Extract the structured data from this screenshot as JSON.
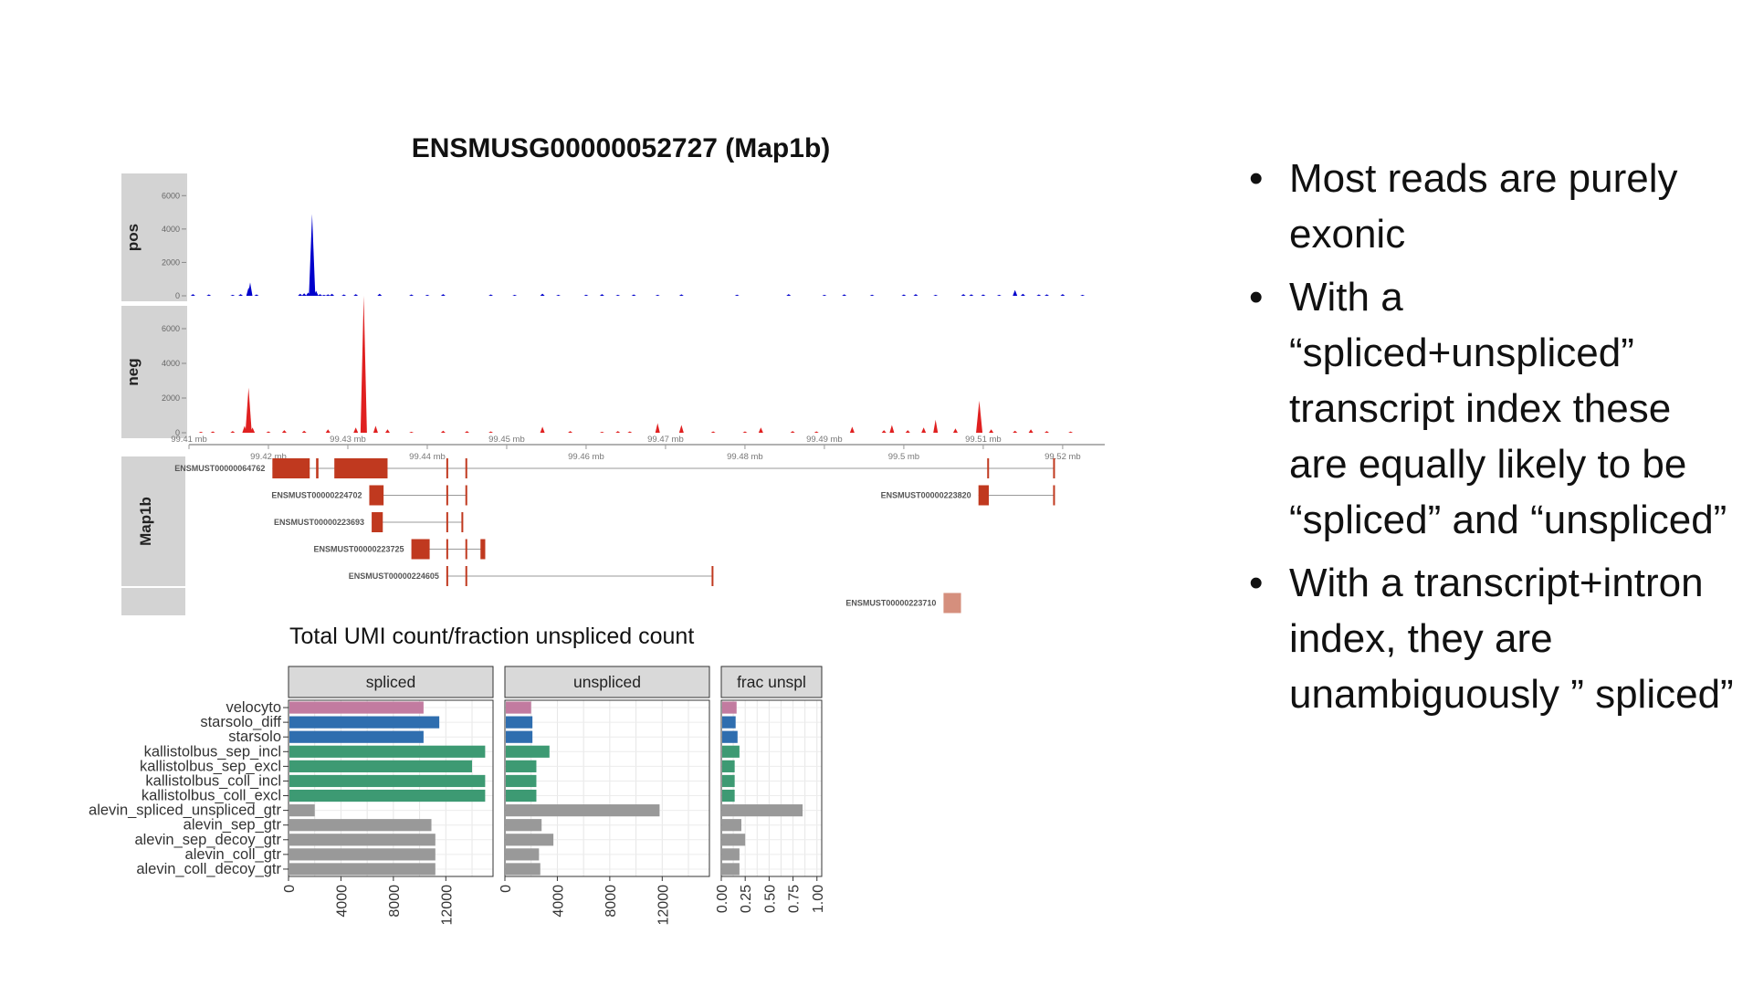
{
  "bullets": [
    "Most reads are purely exonic",
    "With a “spliced+unspliced” transcript index these are equally likely to be “spliced” and “unspliced”",
    "With a transcript+intron index, they are unambiguously ” spliced”"
  ],
  "bullet_symbol": "•",
  "chart_data": [
    {
      "type": "area",
      "title": "ENSMUSG00000052727 (Map1b)",
      "x_ticks": [
        "99.41 mb",
        "99.42 mb",
        "99.43 mb",
        "99.44 mb",
        "99.45 mb",
        "99.46 mb",
        "99.47 mb",
        "99.48 mb",
        "99.49 mb",
        "99.5 mb",
        "99.51 mb",
        "99.52 mb"
      ],
      "x_tick_values": [
        99.41,
        99.42,
        99.43,
        99.44,
        99.45,
        99.46,
        99.47,
        99.48,
        99.49,
        99.5,
        99.51,
        99.52
      ],
      "xlim": [
        99.41,
        99.5253
      ],
      "ylim": [
        0,
        7000
      ],
      "y_ticks": [
        0,
        2000,
        4000,
        6000
      ],
      "tracks": [
        {
          "name": "pos",
          "color": "#0000cc",
          "x": [
            99.4105,
            99.4125,
            99.4155,
            99.4165,
            99.4175,
            99.4177,
            99.4185,
            99.424,
            99.4245,
            99.425,
            99.4255,
            99.426,
            99.4265,
            99.427,
            99.4275,
            99.428,
            99.4295,
            99.431,
            99.434,
            99.438,
            99.44,
            99.442,
            99.448,
            99.451,
            99.4545,
            99.4565,
            99.46,
            99.462,
            99.464,
            99.466,
            99.469,
            99.472,
            99.479,
            99.4855,
            99.49,
            99.4925,
            99.496,
            99.5,
            99.5015,
            99.504,
            99.5075,
            99.5085,
            99.51,
            99.512,
            99.514,
            99.515,
            99.517,
            99.518,
            99.52,
            99.5225
          ],
          "y": [
            100,
            80,
            60,
            100,
            500,
            800,
            80,
            120,
            150,
            200,
            4900,
            300,
            100,
            60,
            90,
            120,
            80,
            100,
            120,
            80,
            60,
            100,
            80,
            60,
            130,
            60,
            70,
            100,
            60,
            80,
            60,
            90,
            70,
            100,
            60,
            90,
            70,
            80,
            100,
            60,
            100,
            90,
            80,
            60,
            350,
            120,
            80,
            90,
            100,
            60
          ]
        },
        {
          "name": "neg",
          "color": "#e02020",
          "x": [
            99.4115,
            99.413,
            99.4155,
            99.417,
            99.4175,
            99.418,
            99.42,
            99.422,
            99.4245,
            99.4275,
            99.431,
            99.432,
            99.4335,
            99.435,
            99.438,
            99.442,
            99.445,
            99.448,
            99.4545,
            99.458,
            99.462,
            99.464,
            99.4655,
            99.469,
            99.472,
            99.476,
            99.48,
            99.482,
            99.486,
            99.489,
            99.4935,
            99.4975,
            99.4985,
            99.5005,
            99.5025,
            99.504,
            99.5065,
            99.5095,
            99.511,
            99.514,
            99.516,
            99.518,
            99.521
          ],
          "y": [
            60,
            80,
            100,
            400,
            2600,
            300,
            80,
            150,
            120,
            200,
            300,
            7900,
            400,
            200,
            60,
            120,
            100,
            80,
            350,
            100,
            60,
            100,
            80,
            550,
            450,
            80,
            80,
            300,
            100,
            80,
            350,
            150,
            450,
            150,
            300,
            750,
            250,
            1850,
            200,
            120,
            200,
            100,
            70
          ]
        }
      ],
      "transcript_track": "Map1b",
      "transcripts": [
        {
          "name": "ENSMUST00000064762",
          "row": 0,
          "color": "#c0391f",
          "exons": [
            [
              99.4205,
              99.4252
            ],
            [
              99.426,
              99.4263
            ],
            [
              99.4283,
              99.435
            ],
            [
              99.4424,
              99.4426
            ],
            [
              99.4448,
              99.445
            ],
            [
              99.5105,
              99.5107
            ],
            [
              99.5188,
              99.519
            ]
          ]
        },
        {
          "name": "ENSMUST00000224702",
          "row": 1,
          "color": "#c0391f",
          "exons": [
            [
              99.4327,
              99.4345
            ],
            [
              99.4424,
              99.4426
            ],
            [
              99.4448,
              99.445
            ]
          ]
        },
        {
          "name": "ENSMUST00000223820",
          "row": 1,
          "color": "#c0391f",
          "exons": [
            [
              99.5094,
              99.5107
            ],
            [
              99.5188,
              99.519
            ]
          ]
        },
        {
          "name": "ENSMUST00000223693",
          "row": 2,
          "color": "#c0391f",
          "exons": [
            [
              99.433,
              99.4344
            ],
            [
              99.4424,
              99.4426
            ],
            [
              99.4443,
              99.4445
            ]
          ]
        },
        {
          "name": "ENSMUST00000223725",
          "row": 3,
          "color": "#c0391f",
          "exons": [
            [
              99.438,
              99.4403
            ],
            [
              99.4424,
              99.4426
            ],
            [
              99.4448,
              99.445
            ],
            [
              99.4467,
              99.4473
            ]
          ]
        },
        {
          "name": "ENSMUST00000224605",
          "row": 4,
          "color": "#c0391f",
          "exons": [
            [
              99.4424,
              99.4426
            ],
            [
              99.4448,
              99.445
            ],
            [
              99.4758,
              99.476
            ]
          ]
        },
        {
          "name": "ENSMUST00000223710",
          "row": 5,
          "color": "#d58f7d",
          "exons": [
            [
              99.505,
              99.5072
            ]
          ]
        }
      ]
    },
    {
      "type": "bar",
      "title": "Total UMI count/fraction unspliced count",
      "categories": [
        "velocyto",
        "starsolo_diff",
        "starsolo",
        "kallistolbus_sep_incl",
        "kallistolbus_sep_excl",
        "kallistolbus_coll_incl",
        "kallistolbus_coll_excl",
        "alevin_spliced_unspliced_gtr",
        "alevin_sep_gtr",
        "alevin_sep_decoy_gtr",
        "alevin_coll_gtr",
        "alevin_coll_decoy_gtr"
      ],
      "colors": [
        "#c27ba0",
        "#2f6eaf",
        "#2f6eaf",
        "#3d9a73",
        "#3d9a73",
        "#3d9a73",
        "#3d9a73",
        "#999999",
        "#999999",
        "#999999",
        "#999999",
        "#999999"
      ],
      "panels": [
        {
          "name": "spliced",
          "xlim": [
            0,
            15600
          ],
          "ticks": [
            0,
            4000,
            8000,
            12000
          ],
          "values": [
            10300,
            11500,
            10300,
            15000,
            14000,
            15000,
            15000,
            2000,
            10900,
            11200,
            11200,
            11200
          ]
        },
        {
          "name": "unspliced",
          "xlim": [
            0,
            15600
          ],
          "ticks": [
            0,
            4000,
            8000,
            12000
          ],
          "values": [
            2000,
            2100,
            2100,
            3400,
            2400,
            2400,
            2400,
            11800,
            2800,
            3700,
            2600,
            2700
          ]
        },
        {
          "name": "frac unspl",
          "xlim": [
            0,
            1.05
          ],
          "ticks": [
            0.0,
            0.25,
            0.5,
            0.75,
            1.0
          ],
          "tick_labels": [
            "0.00",
            "0.25",
            "0.50",
            "0.75",
            "1.00"
          ],
          "values": [
            0.16,
            0.15,
            0.17,
            0.19,
            0.14,
            0.14,
            0.14,
            0.85,
            0.21,
            0.25,
            0.19,
            0.19
          ]
        }
      ]
    }
  ]
}
